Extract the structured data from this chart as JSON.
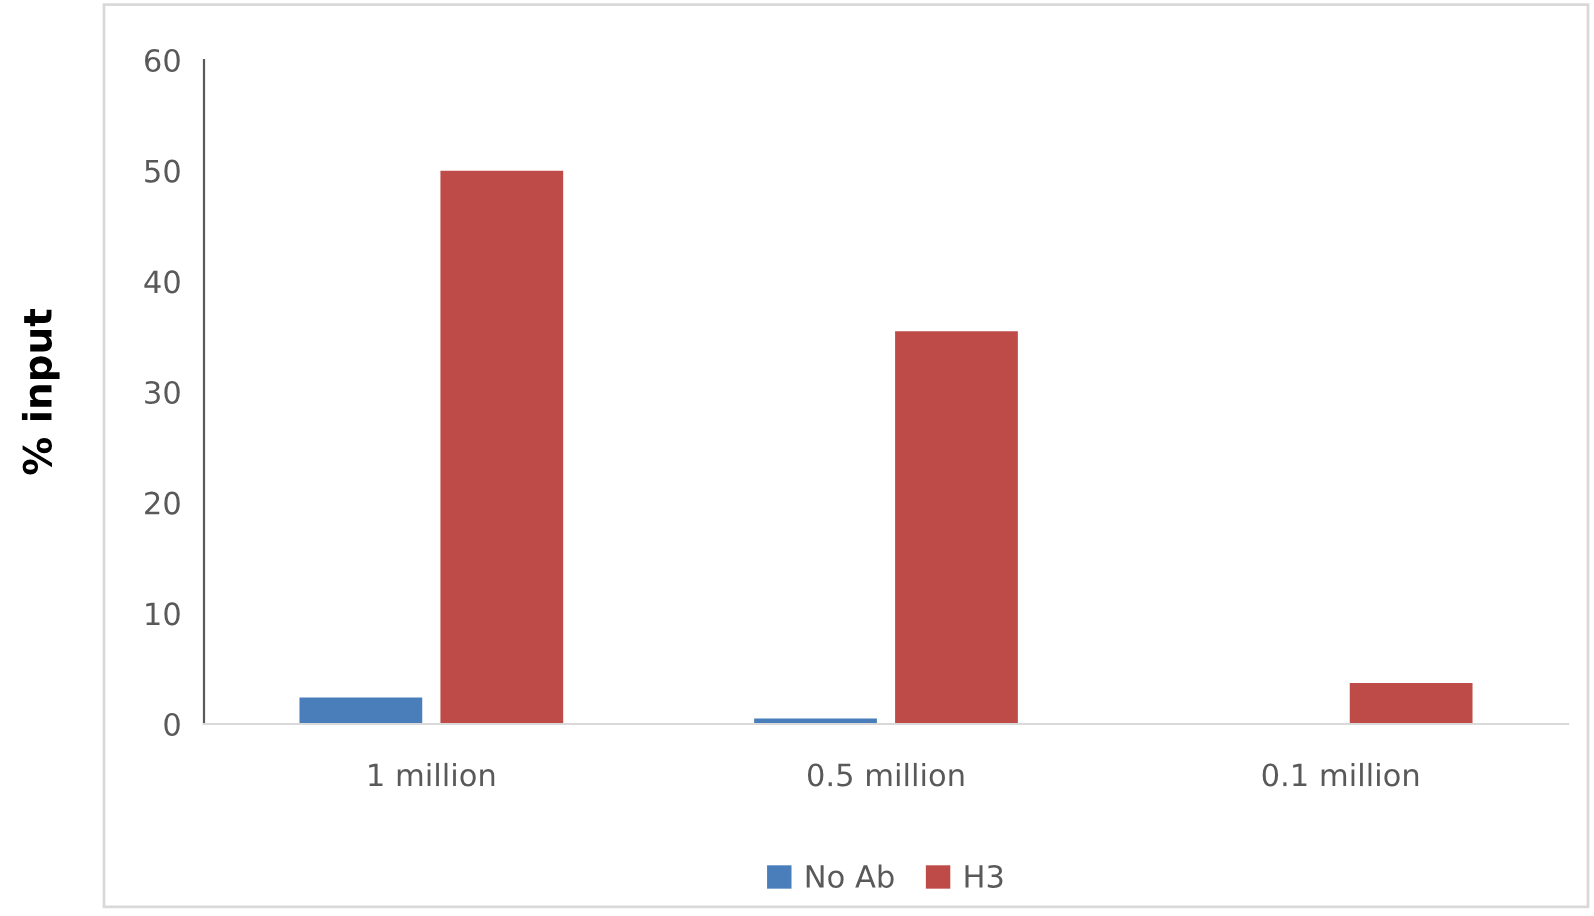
{
  "chart_data": {
    "type": "bar",
    "ylabel": "% input",
    "categories": [
      "1 million",
      "0.5 million",
      "0.1 million"
    ],
    "series": [
      {
        "name": "No Ab",
        "color": "#4a7ebb",
        "values": [
          2.4,
          0.5,
          0
        ]
      },
      {
        "name": "H3",
        "color": "#be4b48",
        "values": [
          50.0,
          35.5,
          3.7
        ]
      }
    ],
    "ylim": [
      0,
      60
    ],
    "yticks": [
      0,
      10,
      20,
      30,
      40,
      50,
      60
    ],
    "grid": false,
    "legend": "bottom"
  }
}
